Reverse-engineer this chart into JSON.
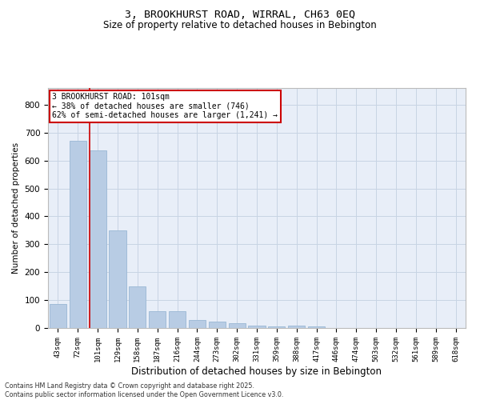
{
  "title_line1": "3, BROOKHURST ROAD, WIRRAL, CH63 0EQ",
  "title_line2": "Size of property relative to detached houses in Bebington",
  "xlabel": "Distribution of detached houses by size in Bebington",
  "ylabel": "Number of detached properties",
  "categories": [
    "43sqm",
    "72sqm",
    "101sqm",
    "129sqm",
    "158sqm",
    "187sqm",
    "216sqm",
    "244sqm",
    "273sqm",
    "302sqm",
    "331sqm",
    "359sqm",
    "388sqm",
    "417sqm",
    "446sqm",
    "474sqm",
    "503sqm",
    "532sqm",
    "561sqm",
    "589sqm",
    "618sqm"
  ],
  "values": [
    85,
    670,
    635,
    350,
    148,
    60,
    60,
    28,
    22,
    17,
    10,
    6,
    10,
    5,
    0,
    0,
    0,
    0,
    0,
    0,
    0
  ],
  "bar_color": "#b8cce4",
  "bar_edge_color": "#9ab8d4",
  "red_line_index": 2,
  "annotation_text": "3 BROOKHURST ROAD: 101sqm\n← 38% of detached houses are smaller (746)\n62% of semi-detached houses are larger (1,241) →",
  "annotation_box_facecolor": "#ffffff",
  "annotation_box_edgecolor": "#cc0000",
  "ylim": [
    0,
    860
  ],
  "yticks": [
    0,
    100,
    200,
    300,
    400,
    500,
    600,
    700,
    800
  ],
  "grid_color": "#c8d4e4",
  "background_color": "#e8eef8",
  "footer_line1": "Contains HM Land Registry data © Crown copyright and database right 2025.",
  "footer_line2": "Contains public sector information licensed under the Open Government Licence v3.0."
}
